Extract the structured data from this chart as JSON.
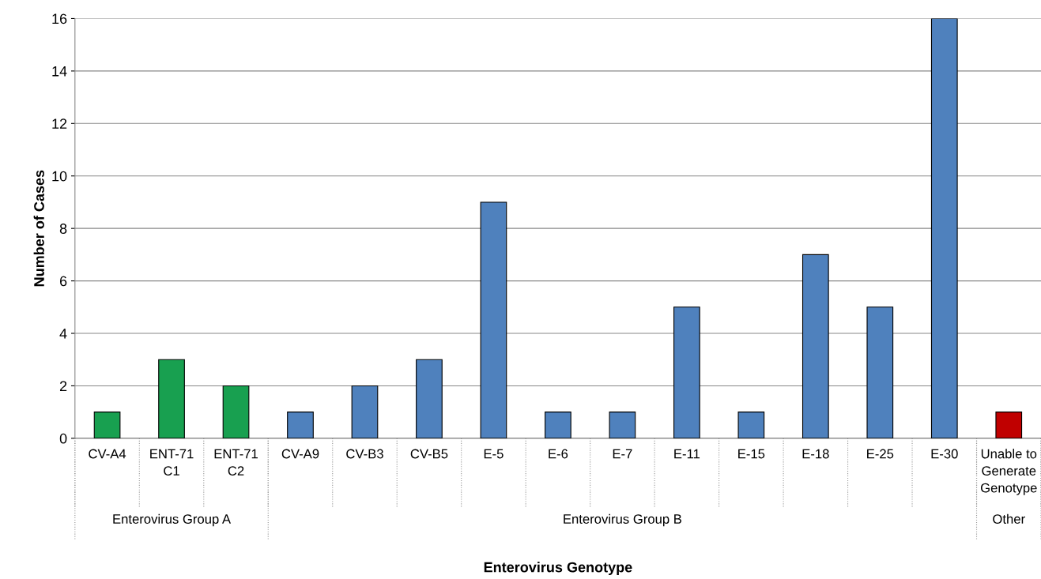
{
  "chart_data": {
    "type": "bar",
    "xlabel": "Enterovirus Genotype",
    "ylabel": "Number of Cases",
    "categories": [
      "CV-A4",
      "ENT-71\nC1",
      "ENT-71\nC2",
      "CV-A9",
      "CV-B3",
      "CV-B5",
      "E-5",
      "E-6",
      "E-7",
      "E-11",
      "E-15",
      "E-18",
      "E-25",
      "E-30",
      "Unable to\nGenerate\nGenotype"
    ],
    "values": [
      1,
      3,
      2,
      1,
      2,
      3,
      9,
      1,
      1,
      5,
      1,
      7,
      5,
      16,
      1
    ],
    "colors": [
      "#18a050",
      "#18a050",
      "#18a050",
      "#4f81bd",
      "#4f81bd",
      "#4f81bd",
      "#4f81bd",
      "#4f81bd",
      "#4f81bd",
      "#4f81bd",
      "#4f81bd",
      "#4f81bd",
      "#4f81bd",
      "#4f81bd",
      "#c00000"
    ],
    "ylim": [
      0,
      16
    ],
    "yticks": [
      0,
      2,
      4,
      6,
      8,
      10,
      12,
      14,
      16
    ],
    "grid": "y",
    "annotations": [
      "Enterovirus Group A",
      "Enterovirus Group B",
      "Other"
    ]
  }
}
